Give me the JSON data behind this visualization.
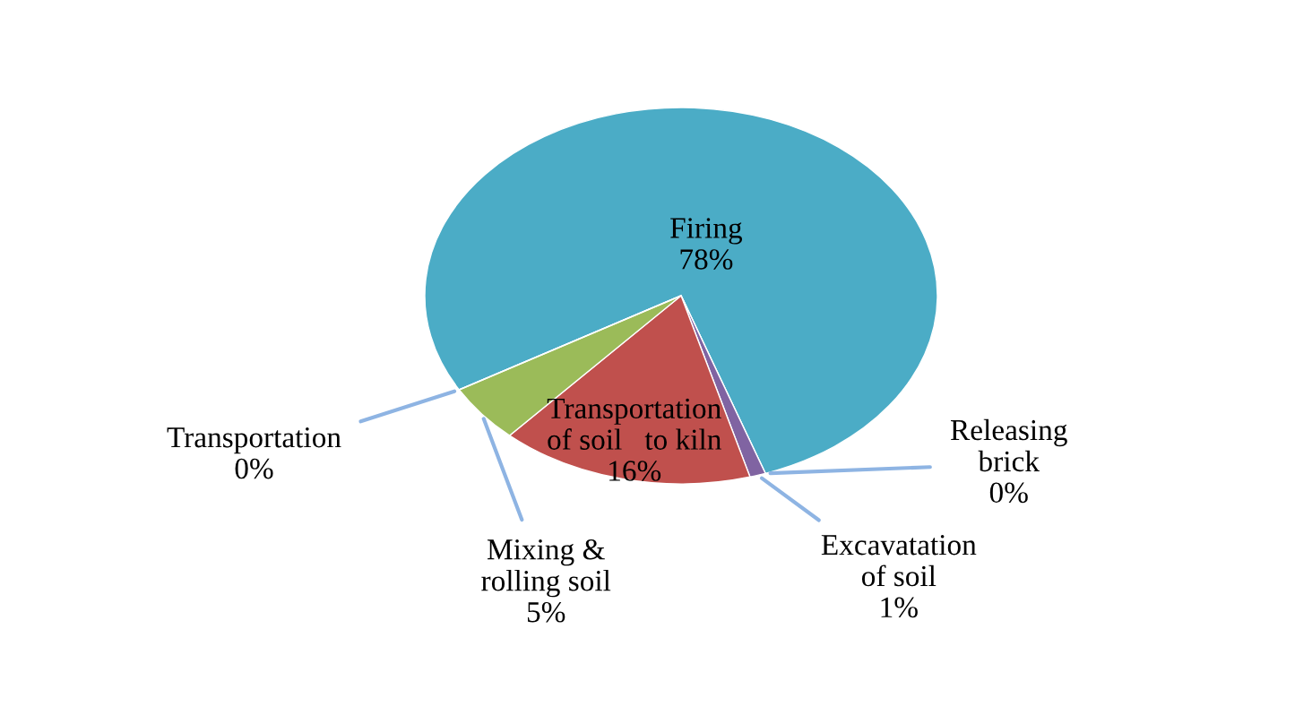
{
  "chart_data": {
    "type": "pie",
    "categories": [
      "Firing",
      "Releasing\nbrick",
      "Excavatation\nof soil",
      "Transportation\nof soil   to kiln",
      "Mixing &\nrolling soil",
      "Transportation"
    ],
    "values": [
      78,
      0,
      1,
      16,
      5,
      0
    ],
    "value_labels": [
      "78%",
      "0%",
      "1%",
      "16%",
      "5%",
      "0%"
    ],
    "colors": [
      "#4bacc6",
      "#f79646",
      "#8064a2",
      "#c0504d",
      "#9bbb59",
      "#1f497d"
    ],
    "legend": false
  }
}
